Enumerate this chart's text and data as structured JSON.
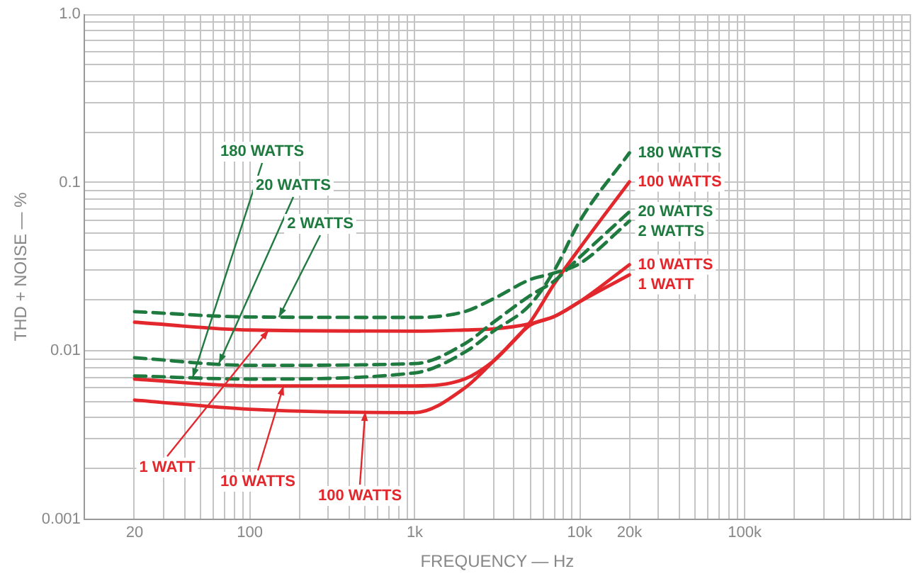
{
  "chart_data": {
    "type": "line",
    "xlabel": "FREQUENCY — Hz",
    "ylabel": "THD + NOISE — %",
    "log": "xy",
    "grid": true,
    "legend": false,
    "marker": "none",
    "x": [
      20,
      100,
      1000,
      2000,
      3000,
      5000,
      7000,
      10000,
      20000
    ],
    "xlim": [
      10,
      1000000
    ],
    "ylim": [
      0.001,
      1
    ],
    "xticks": [
      {
        "value": 10,
        "label": null
      },
      20,
      {
        "value": 30,
        "label": null
      },
      {
        "value": 40,
        "label": null
      },
      {
        "value": 50,
        "label": null
      },
      {
        "value": 60,
        "label": null
      },
      {
        "value": 70,
        "label": null
      },
      {
        "value": 80,
        "label": null
      },
      {
        "value": 90,
        "label": null
      },
      100,
      {
        "value": 200,
        "label": null
      },
      {
        "value": 300,
        "label": null
      },
      {
        "value": 400,
        "label": null
      },
      {
        "value": 500,
        "label": null
      },
      {
        "value": 600,
        "label": null
      },
      {
        "value": 700,
        "label": null
      },
      {
        "value": 800,
        "label": null
      },
      {
        "value": 900,
        "label": null
      },
      {
        "value": 1000,
        "label": "1k"
      },
      {
        "value": 2000,
        "label": null
      },
      {
        "value": 3000,
        "label": null
      },
      {
        "value": 4000,
        "label": null
      },
      {
        "value": 5000,
        "label": null
      },
      {
        "value": 6000,
        "label": null
      },
      {
        "value": 7000,
        "label": null
      },
      {
        "value": 8000,
        "label": null
      },
      {
        "value": 9000,
        "label": null
      },
      {
        "value": 10000,
        "label": "10k"
      },
      {
        "value": 20000,
        "label": "20k"
      },
      {
        "value": 30000,
        "label": null
      },
      {
        "value": 40000,
        "label": null
      },
      {
        "value": 50000,
        "label": null
      },
      {
        "value": 60000,
        "label": null
      },
      {
        "value": 70000,
        "label": null
      },
      {
        "value": 80000,
        "label": null
      },
      {
        "value": 90000,
        "label": null
      },
      {
        "value": 100000,
        "label": "100k"
      },
      {
        "value": 200000,
        "label": null
      },
      {
        "value": 300000,
        "label": null
      },
      {
        "value": 400000,
        "label": null
      },
      {
        "value": 500000,
        "label": null
      },
      {
        "value": 600000,
        "label": null
      },
      {
        "value": 700000,
        "label": null
      },
      {
        "value": 800000,
        "label": null
      },
      {
        "value": 900000,
        "label": null
      },
      {
        "value": 1000000,
        "label": null
      }
    ],
    "yticks": [
      0.001,
      {
        "value": 0.002,
        "label": null
      },
      {
        "value": 0.003,
        "label": null
      },
      {
        "value": 0.004,
        "label": null
      },
      {
        "value": 0.005,
        "label": null
      },
      {
        "value": 0.006,
        "label": null
      },
      {
        "value": 0.007,
        "label": null
      },
      {
        "value": 0.008,
        "label": null
      },
      {
        "value": 0.009,
        "label": null
      },
      0.01,
      {
        "value": 0.02,
        "label": null
      },
      {
        "value": 0.03,
        "label": null
      },
      {
        "value": 0.04,
        "label": null
      },
      {
        "value": 0.05,
        "label": null
      },
      {
        "value": 0.06,
        "label": null
      },
      {
        "value": 0.07,
        "label": null
      },
      {
        "value": 0.08,
        "label": null
      },
      {
        "value": 0.09,
        "label": null
      },
      0.1,
      {
        "value": 0.2,
        "label": null
      },
      {
        "value": 0.3,
        "label": null
      },
      {
        "value": 0.4,
        "label": null
      },
      {
        "value": 0.5,
        "label": null
      },
      {
        "value": 0.6,
        "label": null
      },
      {
        "value": 0.7,
        "label": null
      },
      {
        "value": 0.8,
        "label": null
      },
      {
        "value": 0.9,
        "label": null
      },
      {
        "value": 1,
        "label": "1.0"
      }
    ],
    "series": [
      {
        "name": "180 WATTS",
        "color": "#1f7a3f",
        "line_style": "dashed",
        "values": [
          0.0071,
          0.0068,
          0.0074,
          0.0098,
          0.0131,
          0.0188,
          0.03,
          0.059,
          0.15
        ]
      },
      {
        "name": "20 WATTS",
        "color": "#1f7a3f",
        "line_style": "dashed",
        "values": [
          0.0091,
          0.0082,
          0.0084,
          0.011,
          0.0148,
          0.0213,
          0.026,
          0.036,
          0.067
        ]
      },
      {
        "name": "2 WATTS",
        "color": "#1f7a3f",
        "line_style": "dashed",
        "values": [
          0.0171,
          0.0159,
          0.0158,
          0.0171,
          0.0204,
          0.0265,
          0.029,
          0.033,
          0.059
        ]
      },
      {
        "name": "100 WATTS",
        "color": "#e2282c",
        "line_style": "solid",
        "values": [
          0.0051,
          0.0045,
          0.0043,
          0.006,
          0.0087,
          0.0148,
          0.025,
          0.0408,
          0.101
        ]
      },
      {
        "name": "10 WATTS",
        "color": "#e2282c",
        "line_style": "solid",
        "values": [
          0.0068,
          0.0062,
          0.0062,
          0.0068,
          0.0087,
          0.0142,
          0.016,
          0.0196,
          0.0325
        ]
      },
      {
        "name": "1 WATT",
        "color": "#e2282c",
        "line_style": "solid",
        "values": [
          0.0148,
          0.0133,
          0.0131,
          0.0133,
          0.0135,
          0.0145,
          0.016,
          0.0196,
          0.0283
        ]
      }
    ]
  }
}
